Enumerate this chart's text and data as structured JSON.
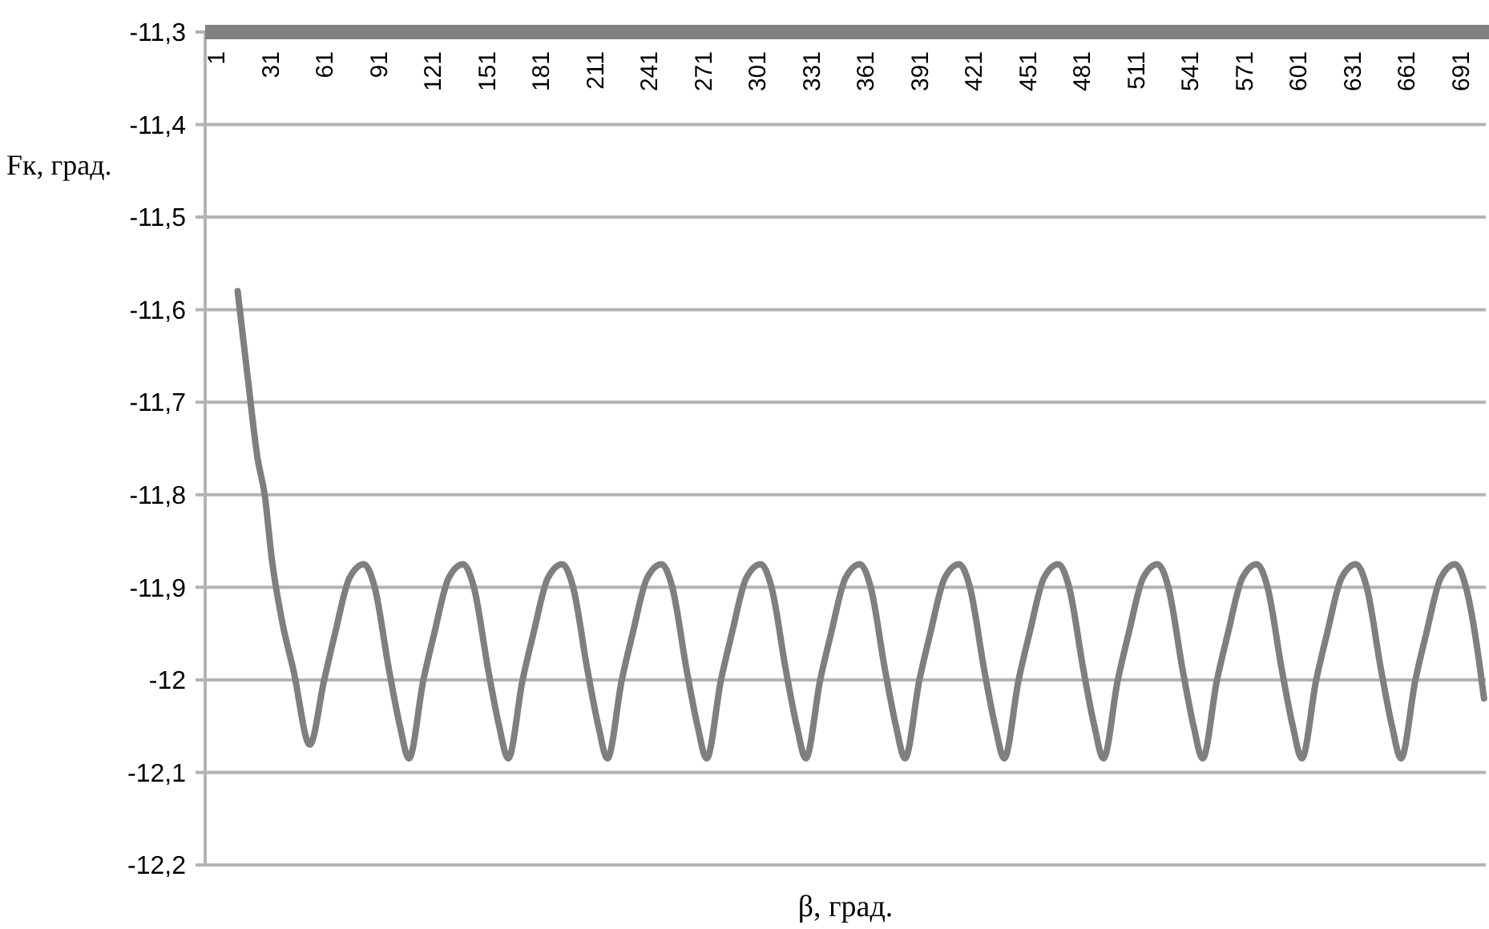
{
  "chart_data": {
    "type": "line",
    "xlabel": "β, град.",
    "ylabel": "Fк, град.",
    "xlim": [
      -5,
      705
    ],
    "xticks": [
      1,
      31,
      61,
      91,
      121,
      151,
      181,
      211,
      241,
      271,
      301,
      331,
      361,
      391,
      421,
      451,
      481,
      511,
      541,
      571,
      601,
      631,
      661,
      691
    ],
    "ylim": [
      -12.2,
      -11.3
    ],
    "yticks": [
      {
        "value": -11.3,
        "label": "-11,3"
      },
      {
        "value": -11.4,
        "label": "-11,4"
      },
      {
        "value": -11.5,
        "label": "-11,5"
      },
      {
        "value": -11.6,
        "label": "-11,6"
      },
      {
        "value": -11.7,
        "label": "-11,7"
      },
      {
        "value": -11.8,
        "label": "-11,8"
      },
      {
        "value": -11.9,
        "label": "-11,9"
      },
      -12,
      {
        "value": -12.1,
        "label": "-12,1"
      },
      {
        "value": -12.2,
        "label": "-12,2"
      }
    ],
    "grid": "y",
    "marker": "none",
    "line_style": "solid",
    "series": [
      {
        "color": "#7f7f7f",
        "x": [
          13,
          19,
          24,
          28,
          32,
          38,
          44,
          53,
          61,
          67,
          75,
          83,
          89,
          97,
          103,
          108,
          116,
          122,
          130,
          138,
          144,
          152,
          158,
          163,
          171,
          177,
          185,
          193,
          199,
          207,
          213,
          218,
          226,
          232,
          240,
          248,
          254,
          262,
          268,
          273,
          281,
          287,
          295,
          303,
          309,
          317,
          323,
          328,
          336,
          342,
          350,
          358,
          364,
          372,
          378,
          383,
          391,
          397,
          405,
          413,
          419,
          427,
          433,
          438,
          446,
          452,
          460,
          468,
          474,
          482,
          488,
          493,
          501,
          507,
          515,
          523,
          529,
          537,
          543,
          548,
          556,
          562,
          570,
          578,
          584,
          592,
          598,
          603,
          611,
          617,
          625,
          633,
          639,
          647,
          653,
          658,
          666,
          672,
          680,
          688,
          694,
          702,
          704
        ],
        "values": [
          -11.58,
          -11.68,
          -11.76,
          -11.8,
          -11.87,
          -11.94,
          -11.99,
          -12.07,
          -12,
          -11.95,
          -11.89,
          -11.875,
          -11.9,
          -11.99,
          -12.05,
          -12.085,
          -12,
          -11.95,
          -11.89,
          -11.875,
          -11.9,
          -11.99,
          -12.05,
          -12.085,
          -12,
          -11.95,
          -11.89,
          -11.875,
          -11.9,
          -11.99,
          -12.05,
          -12.085,
          -12,
          -11.95,
          -11.89,
          -11.875,
          -11.9,
          -11.99,
          -12.05,
          -12.085,
          -12,
          -11.95,
          -11.89,
          -11.875,
          -11.9,
          -11.99,
          -12.05,
          -12.085,
          -12,
          -11.95,
          -11.89,
          -11.875,
          -11.9,
          -11.99,
          -12.05,
          -12.085,
          -12,
          -11.95,
          -11.89,
          -11.875,
          -11.9,
          -11.99,
          -12.05,
          -12.085,
          -12,
          -11.95,
          -11.89,
          -11.875,
          -11.9,
          -11.99,
          -12.05,
          -12.085,
          -12,
          -11.95,
          -11.89,
          -11.875,
          -11.9,
          -11.99,
          -12.05,
          -12.085,
          -12,
          -11.95,
          -11.89,
          -11.875,
          -11.9,
          -11.99,
          -12.05,
          -12.085,
          -12,
          -11.95,
          -11.89,
          -11.875,
          -11.9,
          -11.99,
          -12.05,
          -12.085,
          -12,
          -11.95,
          -11.89,
          -11.875,
          -11.9,
          -11.99,
          -12.02
        ]
      }
    ]
  }
}
